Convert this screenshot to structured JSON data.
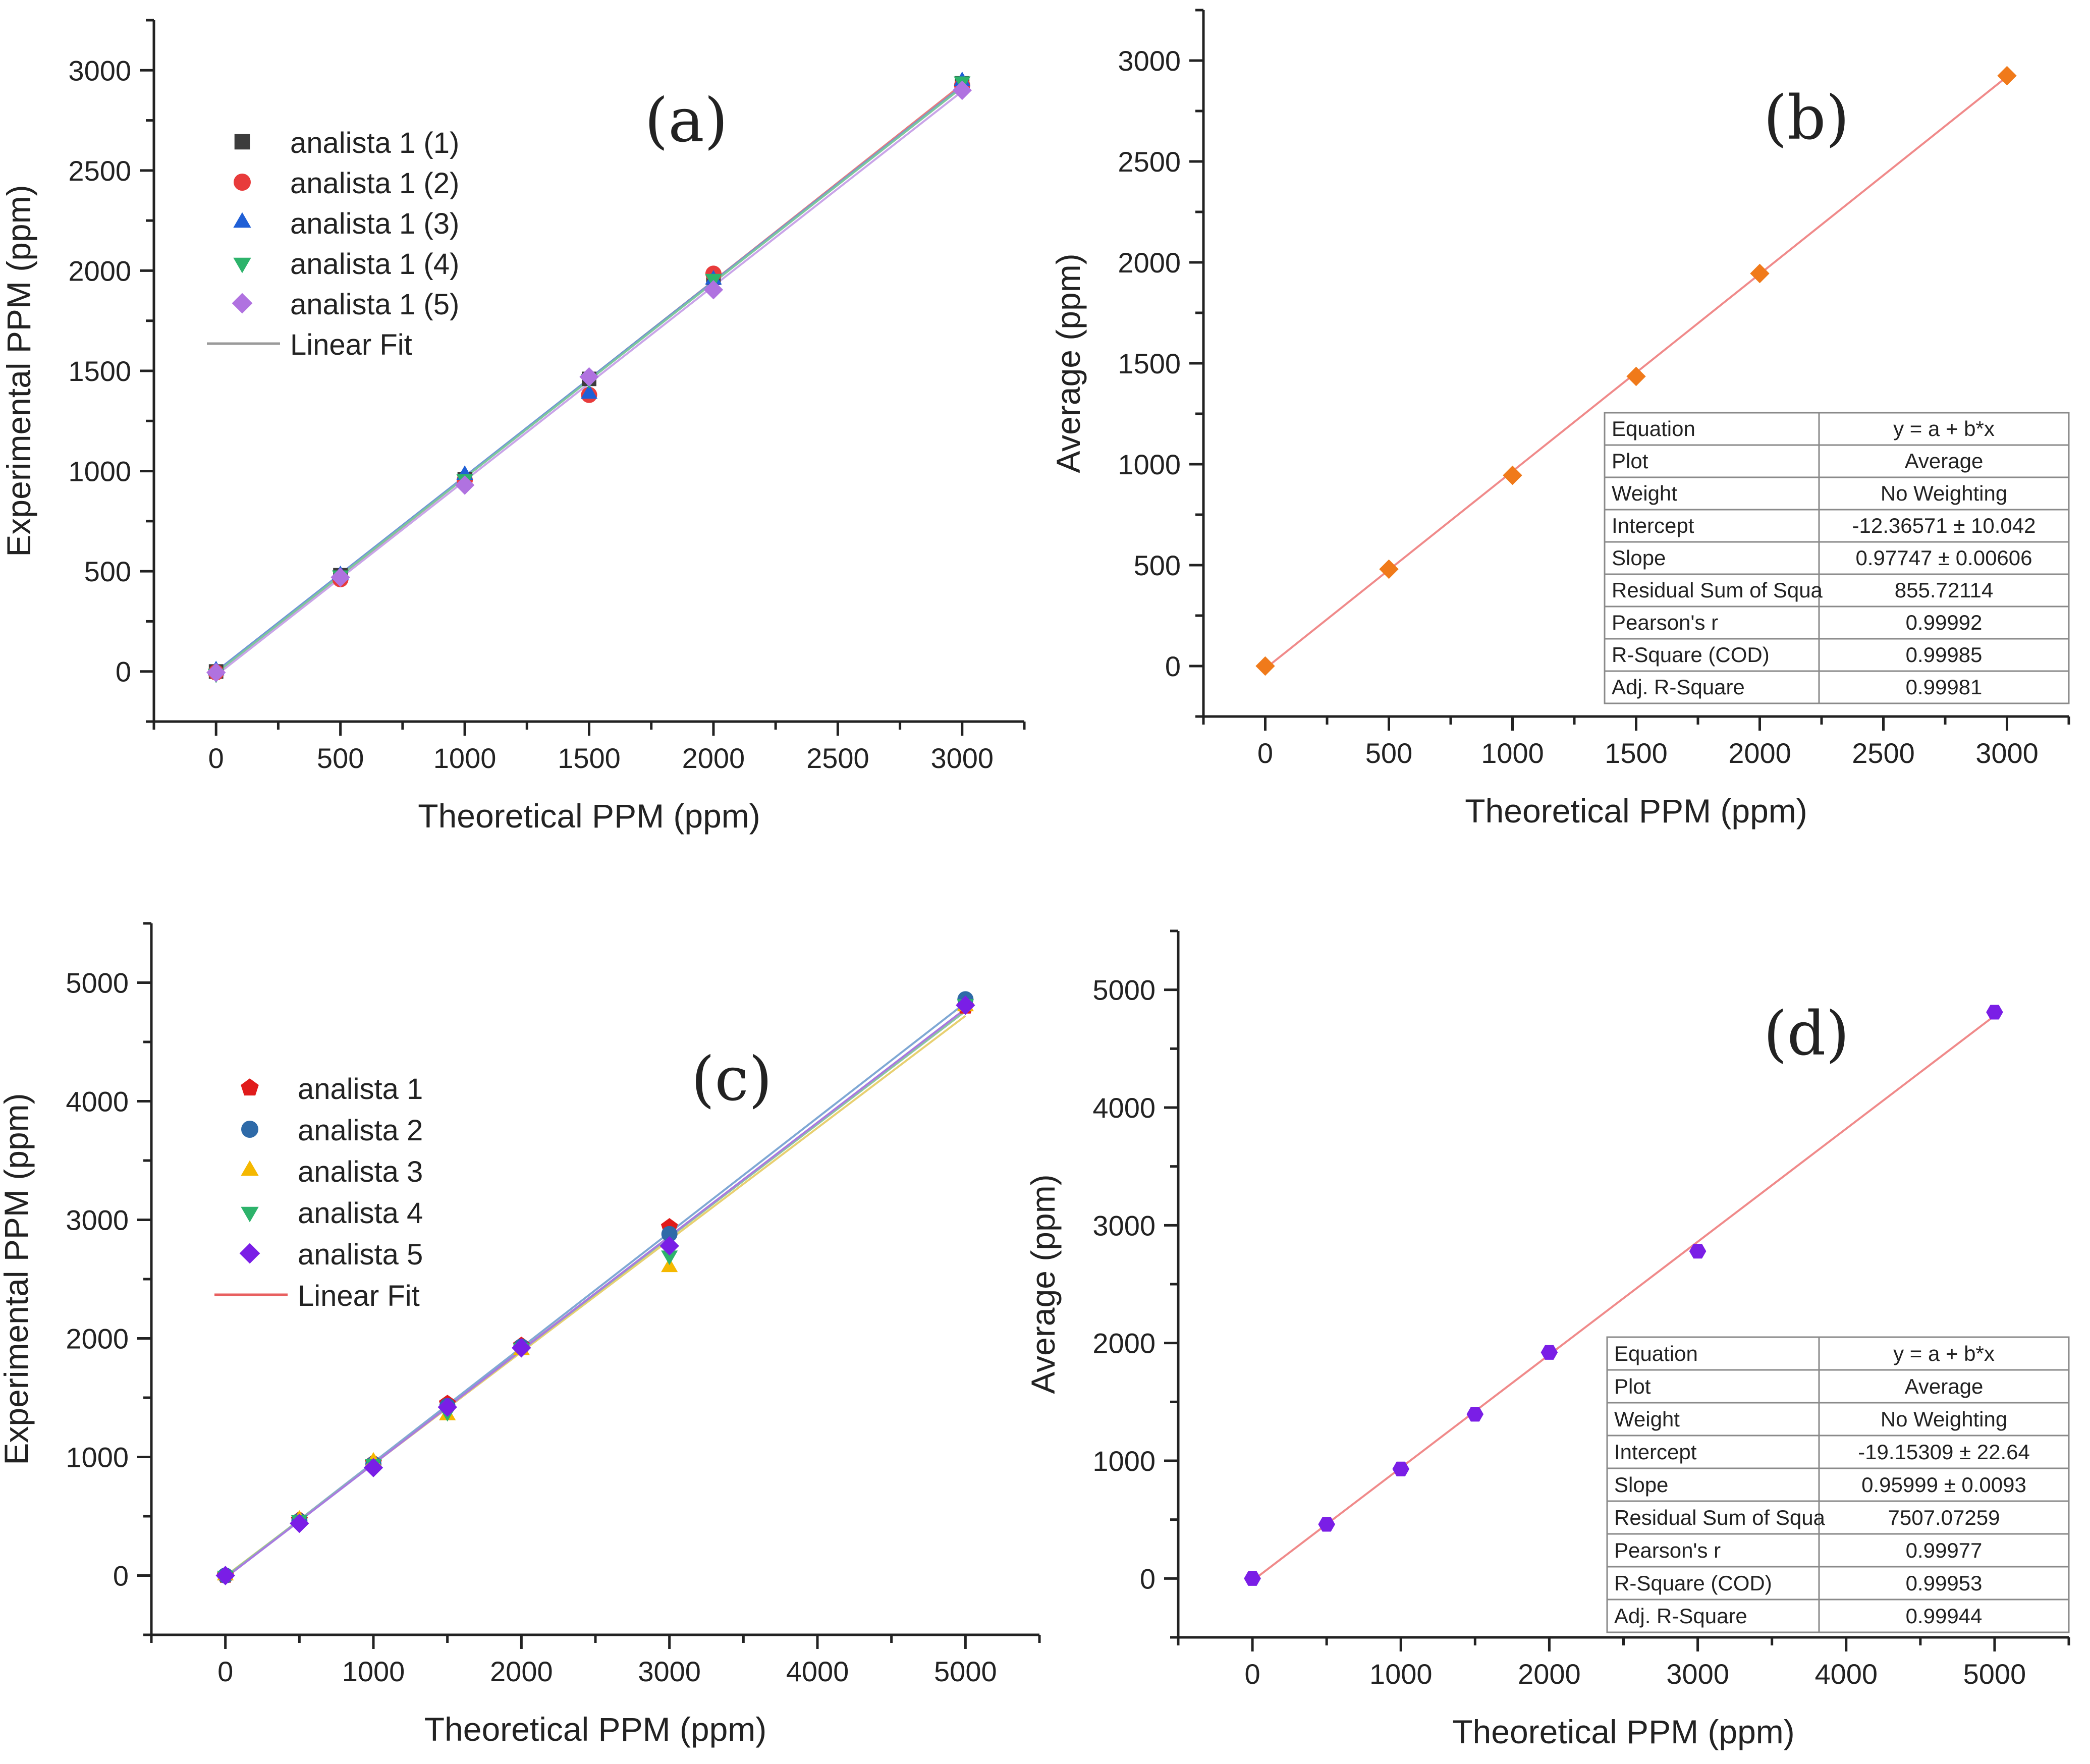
{
  "chart_data": [
    {
      "id": "a",
      "type": "scatter",
      "panel_label": "(a)",
      "xlabel": "Theoretical PPM (ppm)",
      "ylabel": "Experimental PPM (ppm)",
      "xlim": [
        -250,
        3250
      ],
      "ylim": [
        -250,
        3250
      ],
      "xticks": [
        0,
        500,
        1000,
        1500,
        2000,
        2500,
        3000
      ],
      "yticks": [
        0,
        500,
        1000,
        1500,
        2000,
        2500,
        3000
      ],
      "legend": {
        "position": "top-left",
        "fit_label": "Linear Fit",
        "fit_color": "#9a9a9a"
      },
      "x": [
        0,
        500,
        1000,
        1500,
        2000,
        3000
      ],
      "series": [
        {
          "name": "analista 1 (1)",
          "marker": "square",
          "color": "#3c3c3c",
          "fit_color": "#5a5a5a",
          "values": [
            0,
            480,
            960,
            1460,
            1965,
            2935
          ],
          "fit": [
            -5,
            2925
          ]
        },
        {
          "name": "analista 1 (2)",
          "marker": "circle",
          "color": "#e83b3b",
          "fit_color": "#e87c7c",
          "values": [
            -5,
            460,
            955,
            1380,
            1985,
            2925
          ],
          "fit": [
            -15,
            2930
          ]
        },
        {
          "name": "analista 1 (3)",
          "marker": "triangle-up",
          "color": "#1f5fd6",
          "fit_color": "#6f93d9",
          "values": [
            5,
            480,
            980,
            1385,
            1955,
            2945
          ],
          "fit": [
            0,
            2920
          ]
        },
        {
          "name": "analista 1 (4)",
          "marker": "triangle-down",
          "color": "#2db36b",
          "fit_color": "#7cc79c",
          "values": [
            -10,
            480,
            960,
            1460,
            1960,
            2945
          ],
          "fit": [
            -8,
            2915
          ]
        },
        {
          "name": "analista 1 (5)",
          "marker": "diamond",
          "color": "#b072e0",
          "fit_color": "#c9a4e8",
          "values": [
            -5,
            470,
            930,
            1470,
            1905,
            2900
          ],
          "fit": [
            -20,
            2895
          ]
        }
      ]
    },
    {
      "id": "b",
      "type": "scatter",
      "panel_label": "(b)",
      "xlabel": "Theoretical PPM (ppm)",
      "ylabel": "Average (ppm)",
      "xlim": [
        -250,
        3250
      ],
      "ylim": [
        -250,
        3250
      ],
      "xticks": [
        0,
        500,
        1000,
        1500,
        2000,
        2500,
        3000
      ],
      "yticks": [
        0,
        500,
        1000,
        1500,
        2000,
        2500,
        3000
      ],
      "x": [
        0,
        500,
        1000,
        1500,
        2000,
        3000
      ],
      "series": [
        {
          "name": "Average",
          "marker": "diamond",
          "color": "#f07a1a",
          "fit_color": "#f08a8a",
          "values": [
            0,
            480,
            945,
            1435,
            1945,
            2925
          ],
          "fit": [
            -12.37,
            2920
          ]
        }
      ],
      "stats_table": [
        [
          "Equation",
          "y = a + b*x"
        ],
        [
          "Plot",
          "Average"
        ],
        [
          "Weight",
          "No Weighting"
        ],
        [
          "Intercept",
          "-12.36571 ± 10.042"
        ],
        [
          "Slope",
          "0.97747 ± 0.00606"
        ],
        [
          "Residual Sum of Squa",
          "855.72114"
        ],
        [
          "Pearson's r",
          "0.99992"
        ],
        [
          "R-Square (COD)",
          "0.99985"
        ],
        [
          "Adj. R-Square",
          "0.99981"
        ]
      ]
    },
    {
      "id": "c",
      "type": "scatter",
      "panel_label": "(c)",
      "xlabel": "Theoretical PPM (ppm)",
      "ylabel": "Experimental PPM (ppm)",
      "xlim": [
        -500,
        5500
      ],
      "ylim": [
        -500,
        5500
      ],
      "xticks": [
        0,
        1000,
        2000,
        3000,
        4000,
        5000
      ],
      "yticks": [
        0,
        1000,
        2000,
        3000,
        4000,
        5000
      ],
      "legend": {
        "position": "top-left",
        "fit_label": "Linear Fit",
        "fit_color": "#e86060"
      },
      "x": [
        0,
        500,
        1000,
        1500,
        2000,
        3000,
        5000
      ],
      "series": [
        {
          "name": "analista 1",
          "marker": "pentagon",
          "color": "#e01b1b",
          "fit_color": "#e86060",
          "values": [
            0,
            470,
            950,
            1450,
            1940,
            2940,
            4800
          ],
          "fit": [
            -10,
            4770
          ]
        },
        {
          "name": "analista 2",
          "marker": "circle",
          "color": "#2e6aa8",
          "fit_color": "#7fa8d4",
          "values": [
            0,
            460,
            940,
            1430,
            1930,
            2880,
            4860
          ],
          "fit": [
            -15,
            4830
          ]
        },
        {
          "name": "analista 3",
          "marker": "triangle-up",
          "color": "#f5b800",
          "fit_color": "#e8d070",
          "values": [
            0,
            470,
            960,
            1350,
            1900,
            2600,
            4800
          ],
          "fit": [
            -5,
            4720
          ]
        },
        {
          "name": "analista 4",
          "marker": "triangle-down",
          "color": "#2db36b",
          "fit_color": "#8ac7a0",
          "values": [
            0,
            470,
            940,
            1380,
            1920,
            2700,
            4820
          ],
          "fit": [
            -10,
            4760
          ]
        },
        {
          "name": "analista 5",
          "marker": "diamond",
          "color": "#7a1ee6",
          "fit_color": "#a87ae0",
          "values": [
            0,
            440,
            910,
            1420,
            1920,
            2780,
            4810
          ],
          "fit": [
            -20,
            4780
          ]
        }
      ]
    },
    {
      "id": "d",
      "type": "scatter",
      "panel_label": "(d)",
      "xlabel": "Theoretical PPM (ppm)",
      "ylabel": "Average (ppm)",
      "xlim": [
        -500,
        5500
      ],
      "ylim": [
        -500,
        5500
      ],
      "xticks": [
        0,
        1000,
        2000,
        3000,
        4000,
        5000
      ],
      "yticks": [
        0,
        1000,
        2000,
        3000,
        4000,
        5000
      ],
      "x": [
        0,
        500,
        1000,
        1500,
        2000,
        3000,
        5000
      ],
      "series": [
        {
          "name": "Average",
          "marker": "hexagon",
          "color": "#7a1ee6",
          "fit_color": "#f08a8a",
          "values": [
            0,
            460,
            930,
            1395,
            1920,
            2780,
            4810
          ],
          "fit": [
            -19.15,
            4780
          ]
        }
      ],
      "stats_table": [
        [
          "Equation",
          "y = a + b*x"
        ],
        [
          "Plot",
          "Average"
        ],
        [
          "Weight",
          "No Weighting"
        ],
        [
          "Intercept",
          "-19.15309 ± 22.64"
        ],
        [
          "Slope",
          "0.95999 ± 0.0093"
        ],
        [
          "Residual Sum of Squa",
          "7507.07259"
        ],
        [
          "Pearson's r",
          "0.99977"
        ],
        [
          "R-Square (COD)",
          "0.99953"
        ],
        [
          "Adj. R-Square",
          "0.99944"
        ]
      ]
    }
  ]
}
